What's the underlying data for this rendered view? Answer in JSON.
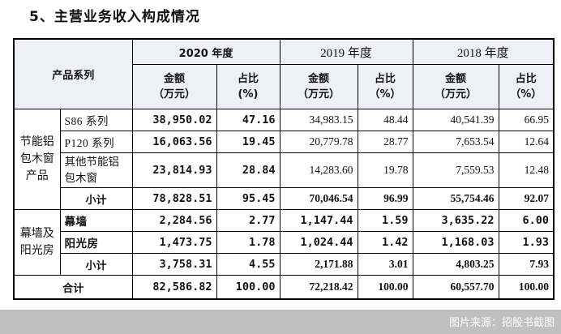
{
  "title": "5、主营业务收入构成情况",
  "header": {
    "product_series": "产品系列",
    "years": [
      "2020 年度",
      "2019 年度",
      "2018 年度"
    ],
    "amount": "金额",
    "amount_unit": "（万元）",
    "ratio": "占比",
    "ratio_unit_2020": "(%)",
    "ratio_unit": "（%）"
  },
  "groups": {
    "g1": "节能铝包木窗产品",
    "g2": "幕墙及阳光房"
  },
  "rows": [
    {
      "name": "S86 系列",
      "v": [
        "38,950.02",
        "47.16",
        "34,983.15",
        "48.44",
        "40,541.39",
        "66.95"
      ]
    },
    {
      "name": "P120 系列",
      "v": [
        "16,063.56",
        "19.45",
        "20,779.78",
        "28.77",
        "7,653.54",
        "12.64"
      ]
    },
    {
      "name": "其他节能铝包木窗",
      "v": [
        "23,814.93",
        "28.84",
        "14,283.60",
        "19.78",
        "7,559.53",
        "12.48"
      ]
    },
    {
      "name": "小计",
      "v": [
        "78,828.51",
        "95.45",
        "70,046.54",
        "96.99",
        "55,754.46",
        "92.07"
      ]
    },
    {
      "name": "幕墙",
      "v": [
        "2,284.56",
        "2.77",
        "1,147.44",
        "1.59",
        "3,635.22",
        "6.00"
      ]
    },
    {
      "name": "阳光房",
      "v": [
        "1,473.75",
        "1.78",
        "1,024.44",
        "1.42",
        "1,168.03",
        "1.93"
      ]
    },
    {
      "name": "小计",
      "v": [
        "3,758.31",
        "4.55",
        "2,171.88",
        "3.01",
        "4,803.25",
        "7.93"
      ]
    }
  ],
  "total": {
    "name": "合计",
    "v": [
      "82,586.82",
      "100.00",
      "72,218.42",
      "100.00",
      "60,557.70",
      "100.00"
    ]
  },
  "watermark": "图片来源：招股书截图"
}
